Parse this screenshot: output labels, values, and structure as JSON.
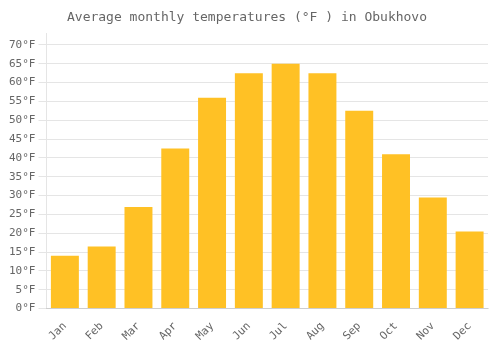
{
  "chart_data": {
    "type": "bar",
    "title": "Average monthly temperatures (°F ) in Obukhovo",
    "categories": [
      "Jan",
      "Feb",
      "Mar",
      "Apr",
      "May",
      "Jun",
      "Jul",
      "Aug",
      "Sep",
      "Oct",
      "Nov",
      "Dec"
    ],
    "values": [
      14,
      16.5,
      27,
      42.5,
      56,
      62.5,
      65,
      62.5,
      52.5,
      41,
      29.5,
      20.5
    ],
    "color": "#FFC125",
    "ylim": [
      0,
      73
    ],
    "yticks": [
      {
        "value": 0,
        "label": "0°F"
      },
      {
        "value": 5,
        "label": "5°F"
      },
      {
        "value": 10,
        "label": "10°F"
      },
      {
        "value": 15,
        "label": "15°F"
      },
      {
        "value": 20,
        "label": "20°F"
      },
      {
        "value": 25,
        "label": "25°F"
      },
      {
        "value": 30,
        "label": "30°F"
      },
      {
        "value": 35,
        "label": "35°F"
      },
      {
        "value": 40,
        "label": "40°F"
      },
      {
        "value": 45,
        "label": "45°F"
      },
      {
        "value": 50,
        "label": "50°F"
      },
      {
        "value": 55,
        "label": "55°F"
      },
      {
        "value": 60,
        "label": "60°F"
      },
      {
        "value": 65,
        "label": "65°F"
      },
      {
        "value": 70,
        "label": "70°F"
      }
    ],
    "grid": true
  }
}
